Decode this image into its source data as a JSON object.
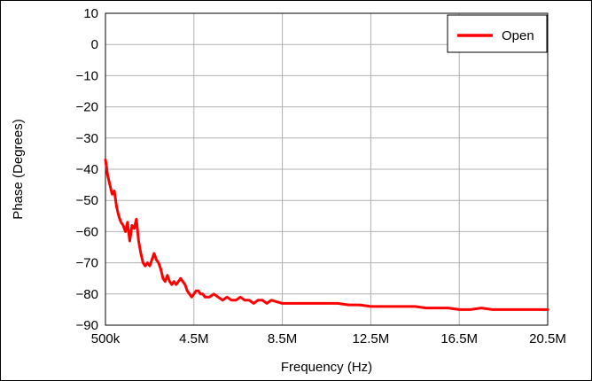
{
  "chart_data": {
    "type": "line",
    "title": "",
    "xlabel": "Frequency (Hz)",
    "ylabel": "Phase (Degrees)",
    "xlim": [
      500000,
      20500000
    ],
    "ylim": [
      -90,
      10
    ],
    "x_ticks": [
      500000,
      4500000,
      8500000,
      12500000,
      16500000,
      20500000
    ],
    "x_tick_labels": [
      "500k",
      "4.5M",
      "8.5M",
      "12.5M",
      "16.5M",
      "20.5M"
    ],
    "y_ticks": [
      10,
      0,
      -10,
      -20,
      -30,
      -40,
      -50,
      -60,
      -70,
      -80,
      -90
    ],
    "y_tick_labels": [
      "10",
      "0",
      "−10",
      "−20",
      "−30",
      "−40",
      "−50",
      "−60",
      "−70",
      "−80",
      "−90"
    ],
    "grid": true,
    "legend_position": "top-right",
    "series": [
      {
        "name": "Open",
        "color": "#ff0000",
        "x": [
          500000,
          540000,
          600000,
          700000,
          800000,
          900000,
          1000000,
          1100000,
          1200000,
          1300000,
          1400000,
          1500000,
          1600000,
          1700000,
          1800000,
          1900000,
          2000000,
          2100000,
          2200000,
          2300000,
          2400000,
          2500000,
          2600000,
          2700000,
          2800000,
          2900000,
          3000000,
          3100000,
          3200000,
          3300000,
          3400000,
          3500000,
          3600000,
          3700000,
          3800000,
          3900000,
          4000000,
          4100000,
          4200000,
          4300000,
          4400000,
          4500000,
          4600000,
          4700000,
          4800000,
          4900000,
          5000000,
          5200000,
          5400000,
          5600000,
          5800000,
          6000000,
          6200000,
          6400000,
          6600000,
          6800000,
          7000000,
          7200000,
          7400000,
          7600000,
          7800000,
          8000000,
          8500000,
          9000000,
          9500000,
          10000000,
          10500000,
          11000000,
          11500000,
          12000000,
          12500000,
          13000000,
          13500000,
          14000000,
          14500000,
          15000000,
          15500000,
          16000000,
          16500000,
          17000000,
          17500000,
          18000000,
          18500000,
          19000000,
          19500000,
          20000000,
          20500000
        ],
        "values": [
          -37,
          -39,
          -42,
          -45,
          -48,
          -47,
          -52,
          -55,
          -57,
          -58,
          -60,
          -57,
          -63,
          -58,
          -59,
          -56,
          -63,
          -67,
          -70,
          -71,
          -70,
          -71,
          -69,
          -67,
          -69,
          -70,
          -72,
          -75,
          -76,
          -74,
          -76,
          -77,
          -76,
          -77,
          -76,
          -75,
          -76,
          -77,
          -79,
          -80,
          -81,
          -80,
          -79,
          -79,
          -80,
          -80,
          -81,
          -81,
          -80,
          -81,
          -82,
          -81,
          -82,
          -82,
          -81,
          -82,
          -82,
          -83,
          -82,
          -82,
          -83,
          -82,
          -83,
          -83,
          -83,
          -83,
          -83,
          -83,
          -83.5,
          -83.5,
          -84,
          -84,
          -84,
          -84,
          -84,
          -84.5,
          -84.5,
          -84.5,
          -85,
          -85,
          -84.5,
          -85,
          -85,
          -85,
          -85,
          -85,
          -85
        ]
      }
    ]
  }
}
